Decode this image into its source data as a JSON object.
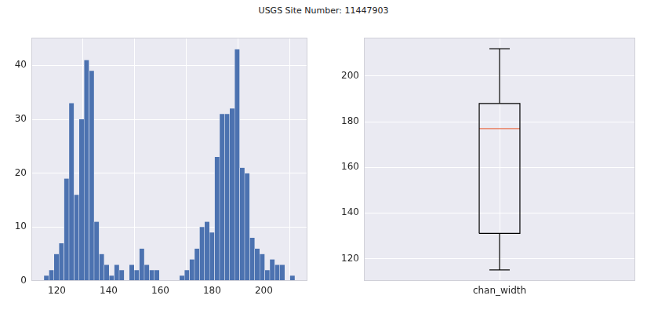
{
  "title": "USGS Site Number: 11447903",
  "chart_data": [
    {
      "type": "histogram",
      "bins": [
        115.0,
        116.94,
        118.88,
        120.82,
        122.76,
        124.7,
        126.64,
        128.58,
        130.52,
        132.46,
        134.4,
        136.34,
        138.28,
        140.22,
        142.16,
        144.1,
        146.04,
        147.98,
        149.92,
        151.86,
        153.8,
        155.74,
        157.68,
        159.62,
        161.56,
        163.5,
        165.44,
        167.38,
        169.32,
        171.26,
        173.2,
        175.14,
        177.08,
        179.02,
        180.96,
        182.9,
        184.84,
        186.78,
        188.72,
        190.66,
        192.6,
        194.54,
        196.48,
        198.42,
        200.36,
        202.3,
        204.24,
        206.18,
        208.12,
        210.06,
        212.0
      ],
      "counts": [
        1,
        2,
        5,
        7,
        19,
        33,
        16,
        30,
        41,
        39,
        11,
        5,
        3,
        1,
        3,
        2,
        0,
        3,
        2,
        6,
        3,
        2,
        2,
        0,
        0,
        0,
        0,
        1,
        2,
        4,
        6,
        10,
        11,
        9,
        23,
        31,
        31,
        32,
        43,
        21,
        20,
        8,
        6,
        5,
        2,
        4,
        3,
        3,
        0,
        1
      ],
      "color": "#4c72b0",
      "xlim": [
        110.15,
        216.85
      ],
      "xticks": [
        120,
        140,
        160,
        180,
        200
      ],
      "ylim": [
        0,
        45.15
      ],
      "yticks": [
        0,
        10,
        20,
        30,
        40
      ],
      "grid": true
    },
    {
      "type": "box",
      "whislo": 115,
      "q1": 131,
      "med": 177,
      "q3": 188,
      "whishi": 212,
      "color": "#000000",
      "xlim": [
        0.5,
        1.5
      ],
      "xticks": [
        {
          "value": 1,
          "label": "chan_width"
        }
      ],
      "ylim": [
        110.15,
        216.85
      ],
      "yticks": [
        120,
        140,
        160,
        180,
        200
      ],
      "grid": true
    }
  ]
}
